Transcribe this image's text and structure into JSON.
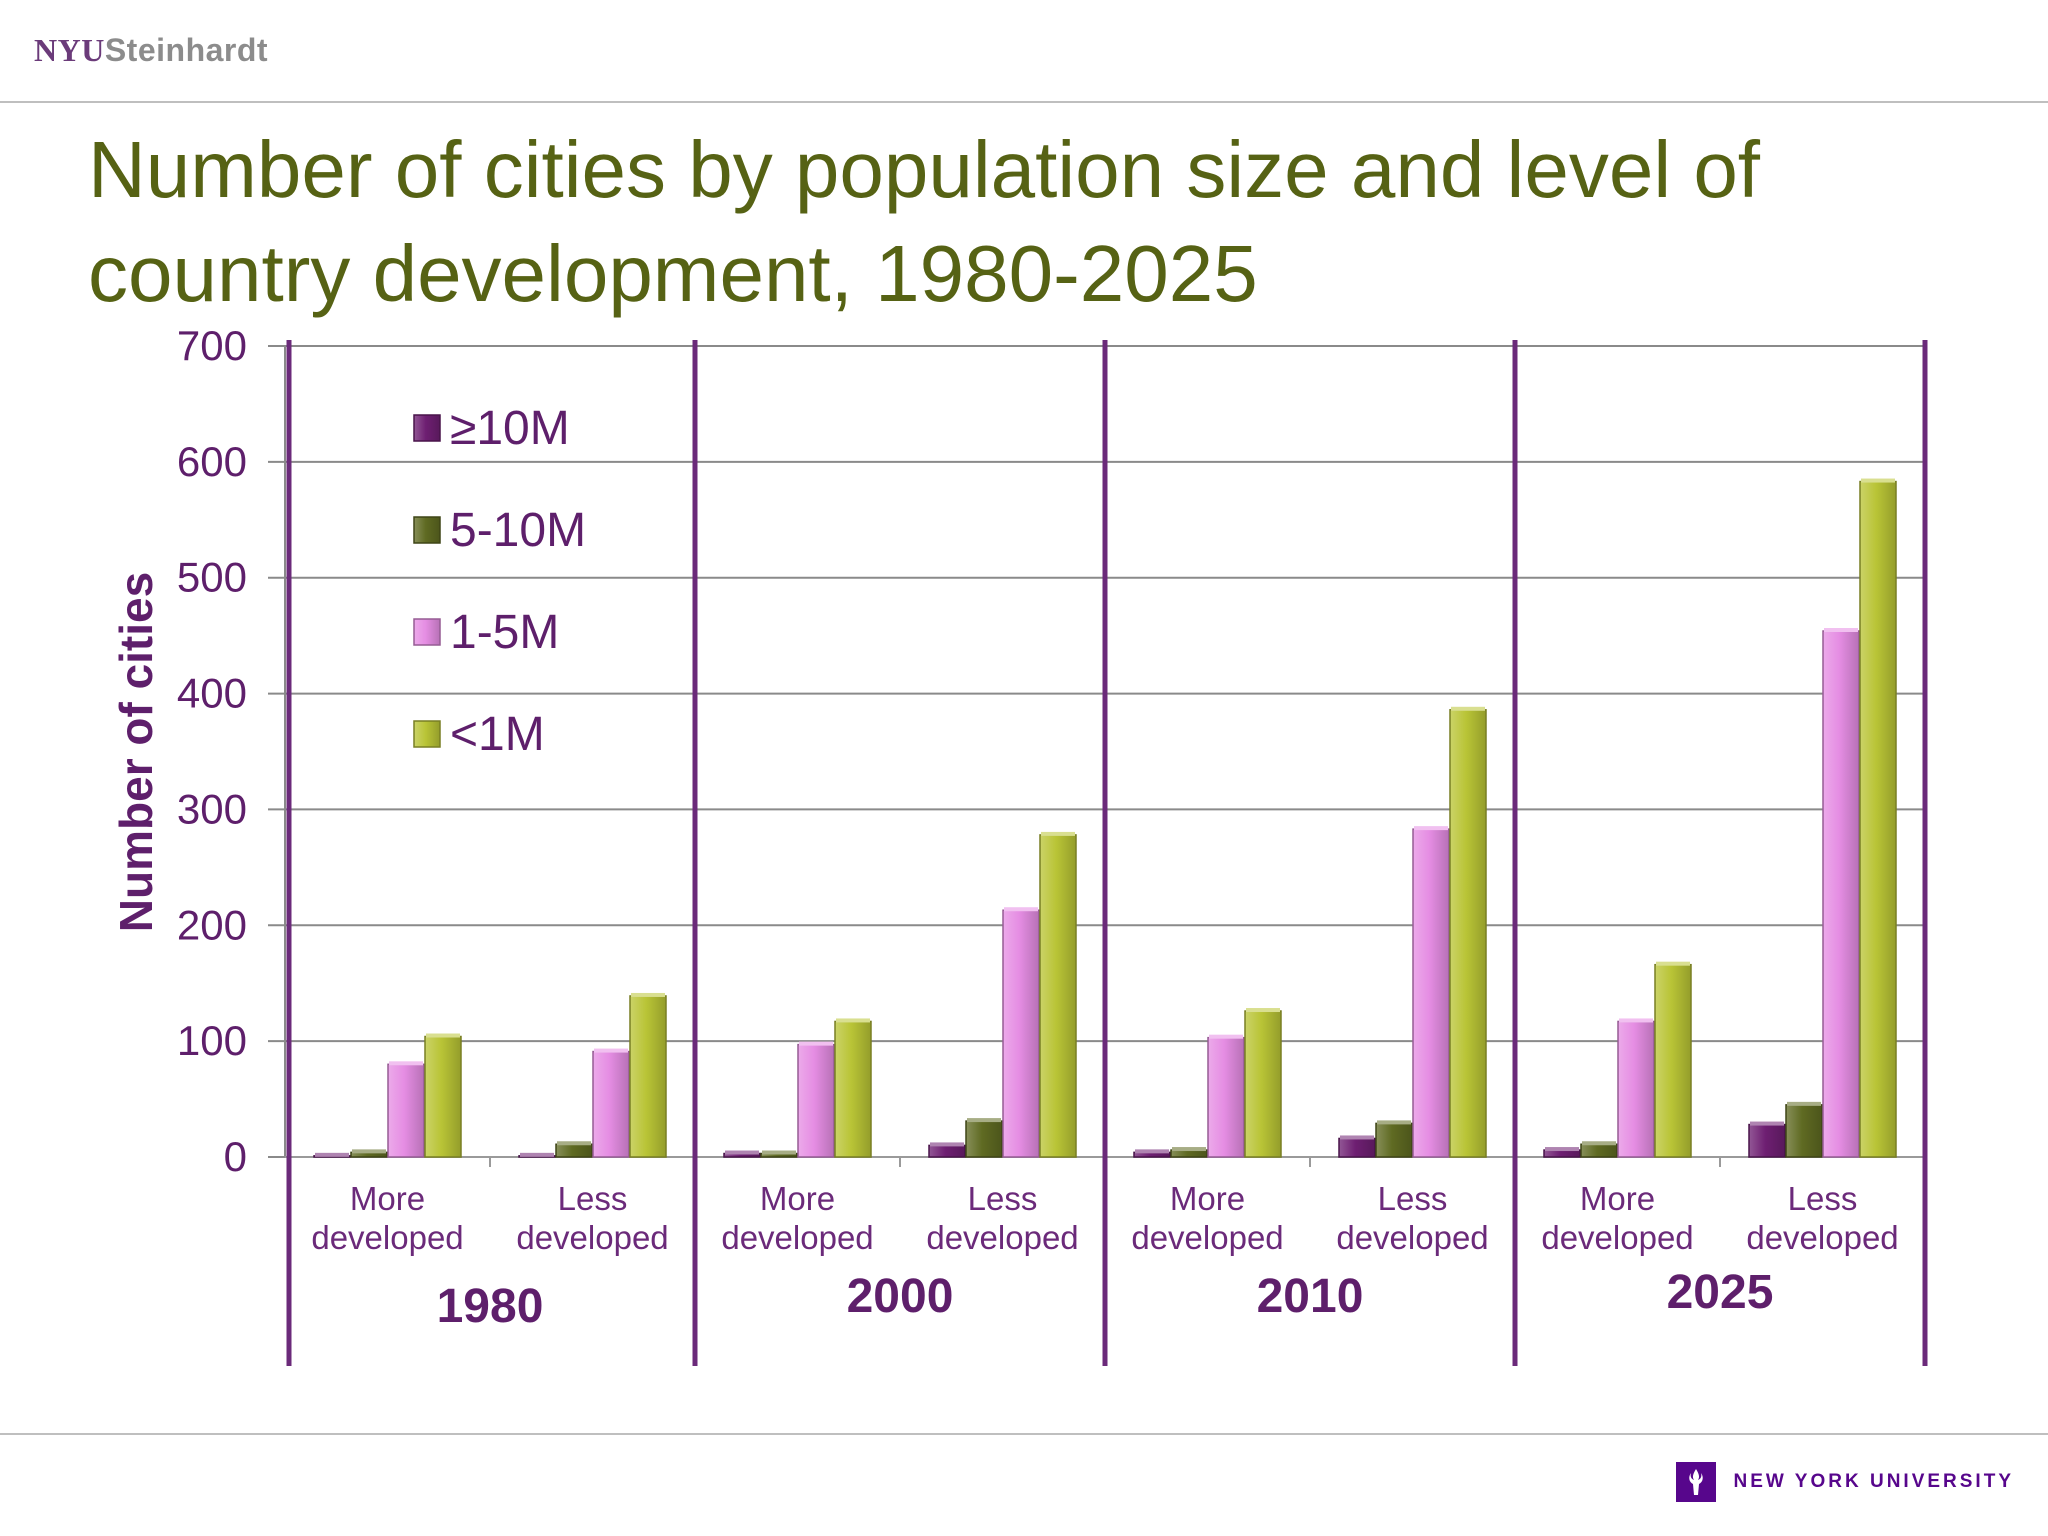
{
  "header": {
    "logo_nyu": "NYU",
    "logo_steinhardt": "Steinhardt"
  },
  "title": "Number of cities by population size and level of country development, 1980-2025",
  "footer": {
    "university": "NEW YORK UNIVERSITY",
    "logo_icon": "torch-icon"
  },
  "colors": {
    "title": "#566214",
    "accent_purple": "#6b2a7a",
    "series_ge10m": "#6e1f72",
    "series_5_10m": "#5f6a22",
    "series_1_5m": "#e58de3",
    "series_lt1m": "#b9c436"
  },
  "chart_data": {
    "type": "bar",
    "ylabel": "Number of cities",
    "ylim": [
      0,
      700
    ],
    "yticks": [
      0,
      100,
      200,
      300,
      400,
      500,
      600,
      700
    ],
    "grid": true,
    "legend_position": "top-left",
    "groups": [
      "1980",
      "2000",
      "2010",
      "2025"
    ],
    "categories": [
      "More developed",
      "Less developed"
    ],
    "category_lines": [
      [
        "More",
        "developed"
      ],
      [
        "Less",
        "developed"
      ]
    ],
    "series": [
      {
        "name": "≥10M",
        "values": [
          [
            1,
            1
          ],
          [
            3,
            10
          ],
          [
            4,
            16
          ],
          [
            6,
            28
          ]
        ]
      },
      {
        "name": "5-10M",
        "values": [
          [
            4,
            11
          ],
          [
            3,
            31
          ],
          [
            6,
            29
          ],
          [
            11,
            45
          ]
        ]
      },
      {
        "name": "1-5M",
        "values": [
          [
            80,
            91
          ],
          [
            97,
            213
          ],
          [
            103,
            283
          ],
          [
            117,
            454
          ]
        ]
      },
      {
        "name": "<1M",
        "values": [
          [
            104,
            139
          ],
          [
            117,
            278
          ],
          [
            126,
            386
          ],
          [
            166,
            583
          ]
        ]
      }
    ]
  }
}
